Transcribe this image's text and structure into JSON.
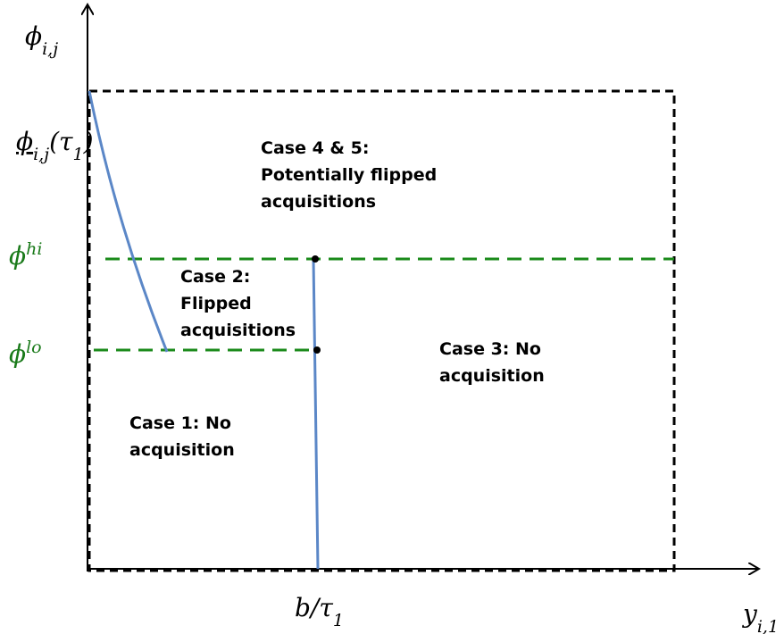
{
  "axis_labels": [
    {
      "id": "y-axis-label",
      "parts": [
        {
          "text": "ϕ"
        },
        {
          "text": "i,j",
          "shift": "sub"
        }
      ]
    },
    {
      "id": "x-axis-label",
      "parts": [
        {
          "text": "y"
        },
        {
          "text": "i,1",
          "shift": "sub"
        }
      ]
    },
    {
      "id": "phi-tau-label",
      "parts": [
        {
          "text": "ϕ",
          "underline": true
        },
        {
          "text": "i,j",
          "shift": "sub"
        },
        {
          "text": "(τ"
        },
        {
          "text": "1",
          "shift": "sub"
        },
        {
          "text": ")"
        }
      ]
    },
    {
      "id": "phi-hi-label",
      "color": "#1a7a1a",
      "parts": [
        {
          "text": "ϕ"
        },
        {
          "text": "hi",
          "shift": "super"
        }
      ]
    },
    {
      "id": "phi-lo-label",
      "color": "#1a7a1a",
      "parts": [
        {
          "text": "ϕ"
        },
        {
          "text": "lo",
          "shift": "super"
        }
      ]
    },
    {
      "id": "b-tau-label",
      "parts": [
        {
          "text": "b/τ"
        },
        {
          "text": "1",
          "shift": "sub"
        }
      ]
    }
  ],
  "regions": [
    {
      "id": "case-4-5",
      "lines": [
        "Case 4 & 5:",
        "Potentially flipped",
        "acquisitions"
      ]
    },
    {
      "id": "case-2",
      "lines": [
        "Case 2:",
        "Flipped",
        "acquisitions"
      ]
    },
    {
      "id": "case-3",
      "lines": [
        "Case 3: No",
        "acquisition"
      ]
    },
    {
      "id": "case-1",
      "lines": [
        "Case 1: No",
        "acquisition"
      ]
    }
  ]
}
